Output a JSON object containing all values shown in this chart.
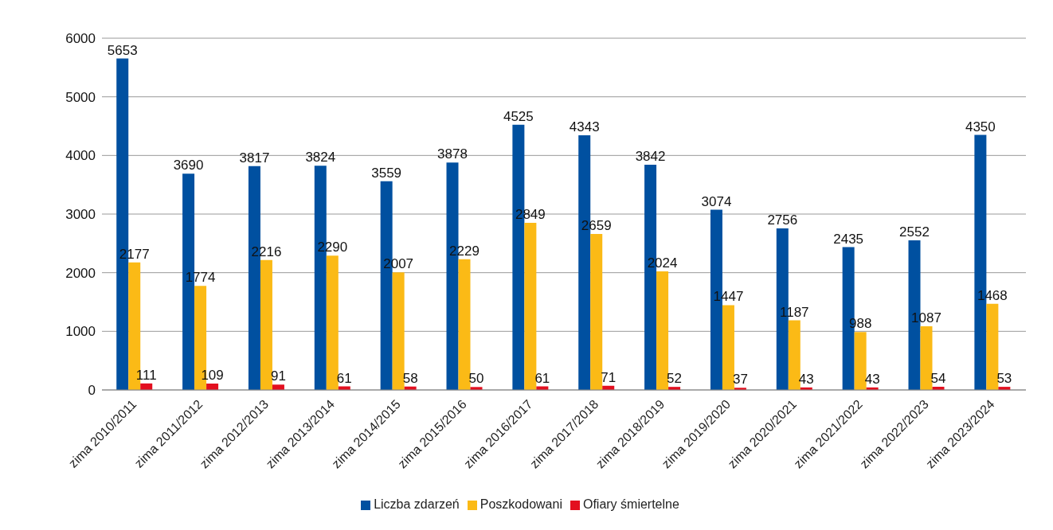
{
  "chart_data": {
    "type": "bar",
    "categories": [
      "zima 2010/2011",
      "zima 2011/2012",
      "zima 2012/2013",
      "zima 2013/2014",
      "zima 2014/2015",
      "zima 2015/2016",
      "zima 2016/2017",
      "zima 2017/2018",
      "zima 2018/2019",
      "zima 2019/2020",
      "zima 2020/2021",
      "zima 2021/2022",
      "zima 2022/2023",
      "zima 2023/2024"
    ],
    "series": [
      {
        "name": "Liczba zdarzeń",
        "color": "#0050a0",
        "values": [
          5653,
          3690,
          3817,
          3824,
          3559,
          3878,
          4525,
          4343,
          3842,
          3074,
          2756,
          2435,
          2552,
          4350
        ]
      },
      {
        "name": "Poszkodowani",
        "color": "#fbba16",
        "values": [
          2177,
          1774,
          2216,
          2290,
          2007,
          2229,
          2849,
          2659,
          2024,
          1447,
          1187,
          988,
          1087,
          1468
        ]
      },
      {
        "name": "Ofiary śmiertelne",
        "color": "#e30f1f",
        "values": [
          111,
          109,
          91,
          61,
          58,
          50,
          61,
          71,
          52,
          37,
          43,
          43,
          54,
          53
        ]
      }
    ],
    "ylim": [
      0,
      6000
    ],
    "yticks": [
      0,
      1000,
      2000,
      3000,
      4000,
      5000,
      6000
    ],
    "grid": "y",
    "legend": "bottom",
    "data_labels": true
  }
}
